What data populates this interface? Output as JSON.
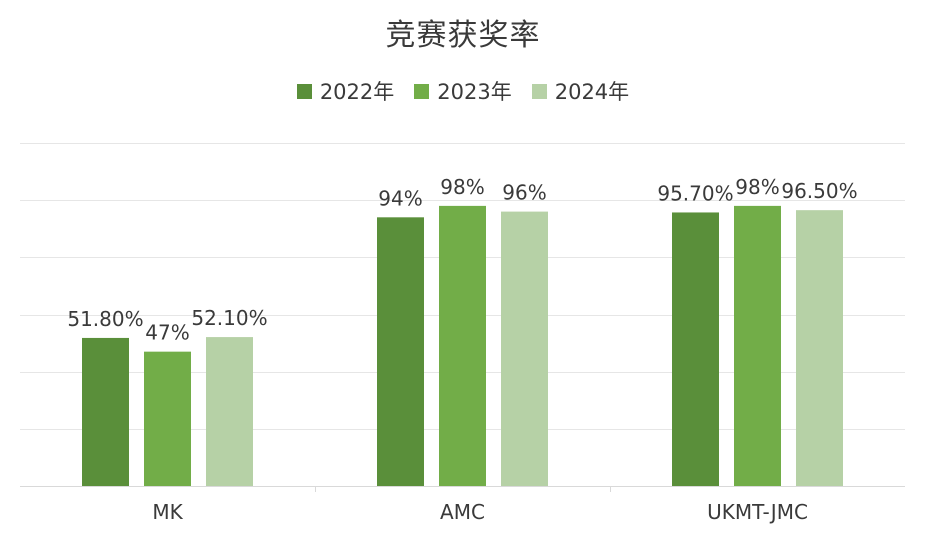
{
  "chart_data": {
    "type": "bar",
    "title": "竞赛获奖率",
    "categories": [
      "MK",
      "AMC",
      "UKMT-JMC"
    ],
    "series": [
      {
        "name": "2022年",
        "color": "#5a8f3a",
        "values": [
          51.8,
          94,
          95.7
        ],
        "labels": [
          "51.80%",
          "94%",
          "95.70%"
        ]
      },
      {
        "name": "2023年",
        "color": "#72ad48",
        "values": [
          47,
          98,
          98
        ],
        "labels": [
          "47%",
          "98%",
          "98%"
        ]
      },
      {
        "name": "2024年",
        "color": "#b6d1a6",
        "values": [
          52.1,
          96,
          96.5
        ],
        "labels": [
          "52.10%",
          "96%",
          "96.50%"
        ]
      }
    ],
    "ylim": [
      0,
      120
    ],
    "grid": true,
    "legend": "top-center",
    "xlabel": "",
    "ylabel": ""
  }
}
